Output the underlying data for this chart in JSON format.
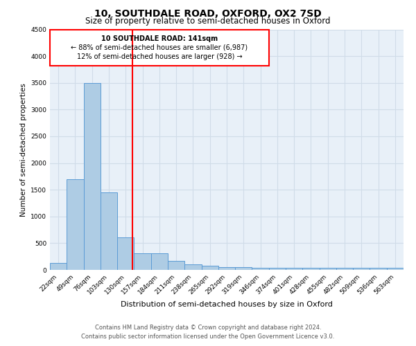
{
  "title": "10, SOUTHDALE ROAD, OXFORD, OX2 7SD",
  "subtitle": "Size of property relative to semi-detached houses in Oxford",
  "xlabel": "Distribution of semi-detached houses by size in Oxford",
  "ylabel": "Number of semi-detached properties",
  "footer_line1": "Contains HM Land Registry data © Crown copyright and database right 2024.",
  "footer_line2": "Contains public sector information licensed under the Open Government Licence v3.0.",
  "categories": [
    "22sqm",
    "49sqm",
    "76sqm",
    "103sqm",
    "130sqm",
    "157sqm",
    "184sqm",
    "211sqm",
    "238sqm",
    "265sqm",
    "292sqm",
    "319sqm",
    "346sqm",
    "374sqm",
    "401sqm",
    "428sqm",
    "455sqm",
    "482sqm",
    "509sqm",
    "536sqm",
    "563sqm"
  ],
  "values": [
    130,
    1700,
    3500,
    1450,
    610,
    305,
    305,
    165,
    110,
    75,
    55,
    55,
    45,
    40,
    35,
    35,
    35,
    35,
    35,
    35,
    35
  ],
  "bar_color": "#aecce4",
  "bar_edge_color": "#5b9bd5",
  "ylim": [
    0,
    4500
  ],
  "yticks": [
    0,
    500,
    1000,
    1500,
    2000,
    2500,
    3000,
    3500,
    4000,
    4500
  ],
  "property_label": "10 SOUTHDALE ROAD: 141sqm",
  "pct_smaller": 88,
  "count_smaller": 6987,
  "pct_larger": 12,
  "count_larger": 928,
  "grid_color": "#d0dce8",
  "background_color": "#e8f0f8",
  "title_fontsize": 10,
  "subtitle_fontsize": 8.5,
  "axis_label_fontsize": 7.5,
  "tick_fontsize": 6.5,
  "annotation_fontsize": 7,
  "footer_fontsize": 6
}
